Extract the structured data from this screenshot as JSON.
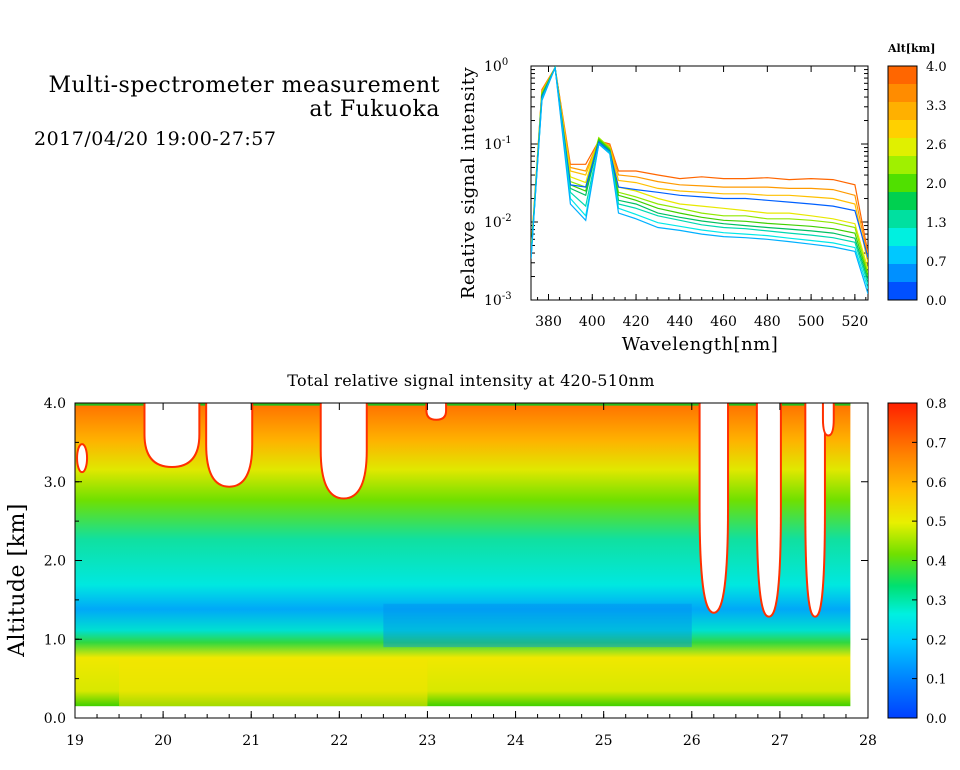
{
  "header": {
    "title_line1": "Multi-spectrometer measurement",
    "title_line2": "at Fukuoka",
    "datetime": "2017/04/20 19:00-27:57"
  },
  "chart_data": [
    {
      "type": "line",
      "title": "",
      "xlabel": "Wavelength[nm]",
      "ylabel": "Relative signal intensity",
      "xlim": [
        372,
        526
      ],
      "ylim": [
        0.001,
        1
      ],
      "yscale": "log",
      "x_ticks": [
        380,
        400,
        420,
        440,
        460,
        480,
        500,
        520
      ],
      "y_ticks": [
        0.001,
        0.01,
        0.1,
        1
      ],
      "y_tick_exponents": [
        "-3",
        "-2",
        "-1",
        "0"
      ],
      "y_tick_base": "10",
      "colorbar": {
        "title": "Alt[km]",
        "ticks": [
          "4.0",
          "3.3",
          "2.6",
          "2.0",
          "1.3",
          "0.7",
          "0.0"
        ],
        "colors": [
          "#ff6600",
          "#ff8c00",
          "#ffb000",
          "#ffd000",
          "#e0f000",
          "#a0f000",
          "#50e000",
          "#00d050",
          "#00e0a0",
          "#00f0e0",
          "#00c8ff",
          "#0090ff",
          "#0050ff"
        ]
      },
      "x": [
        372,
        377,
        383,
        390,
        397,
        403,
        408,
        412,
        420,
        430,
        440,
        450,
        460,
        470,
        480,
        490,
        500,
        510,
        520,
        526
      ],
      "series": [
        {
          "altitude": 4.0,
          "color": "#ff6600",
          "values": [
            0.004,
            0.5,
            0.95,
            0.055,
            0.055,
            0.11,
            0.1,
            0.045,
            0.045,
            0.04,
            0.036,
            0.038,
            0.036,
            0.036,
            0.037,
            0.035,
            0.036,
            0.035,
            0.03,
            0.004
          ]
        },
        {
          "altitude": 3.6,
          "color": "#ff9a00",
          "values": [
            0.004,
            0.48,
            0.95,
            0.05,
            0.045,
            0.11,
            0.095,
            0.04,
            0.038,
            0.033,
            0.03,
            0.029,
            0.028,
            0.028,
            0.028,
            0.027,
            0.027,
            0.026,
            0.022,
            0.0035
          ]
        },
        {
          "altitude": 3.3,
          "color": "#ffc000",
          "values": [
            0.004,
            0.46,
            0.95,
            0.045,
            0.04,
            0.11,
            0.09,
            0.034,
            0.032,
            0.027,
            0.025,
            0.024,
            0.023,
            0.023,
            0.022,
            0.022,
            0.021,
            0.02,
            0.017,
            0.003
          ]
        },
        {
          "altitude": 3.0,
          "color": "#e8e800",
          "values": [
            0.004,
            0.45,
            0.95,
            0.038,
            0.032,
            0.12,
            0.09,
            0.028,
            0.025,
            0.02,
            0.017,
            0.016,
            0.015,
            0.014,
            0.013,
            0.013,
            0.012,
            0.011,
            0.0095,
            0.0025
          ]
        },
        {
          "altitude": 2.6,
          "color": "#90e800",
          "values": [
            0.0038,
            0.45,
            0.95,
            0.033,
            0.028,
            0.12,
            0.088,
            0.024,
            0.021,
            0.017,
            0.015,
            0.013,
            0.012,
            0.012,
            0.011,
            0.011,
            0.0105,
            0.0098,
            0.0085,
            0.0022
          ]
        },
        {
          "altitude": 2.3,
          "color": "#40d000",
          "values": [
            0.0037,
            0.43,
            0.95,
            0.03,
            0.025,
            0.115,
            0.085,
            0.022,
            0.019,
            0.015,
            0.013,
            0.0115,
            0.0105,
            0.0102,
            0.0096,
            0.0092,
            0.0088,
            0.0082,
            0.0072,
            0.002
          ]
        },
        {
          "altitude": 2.0,
          "color": "#00c060",
          "values": [
            0.0036,
            0.42,
            0.95,
            0.027,
            0.022,
            0.11,
            0.082,
            0.019,
            0.017,
            0.013,
            0.0115,
            0.0103,
            0.0095,
            0.009,
            0.0085,
            0.0081,
            0.0077,
            0.0072,
            0.0062,
            0.0018
          ]
        },
        {
          "altitude": 1.7,
          "color": "#0060ff",
          "values": [
            0.0035,
            0.4,
            0.95,
            0.03,
            0.028,
            0.105,
            0.08,
            0.028,
            0.026,
            0.024,
            0.022,
            0.021,
            0.02,
            0.02,
            0.019,
            0.018,
            0.017,
            0.016,
            0.014,
            0.0035
          ]
        },
        {
          "altitude": 1.3,
          "color": "#00d8b0",
          "values": [
            0.0035,
            0.38,
            0.95,
            0.024,
            0.016,
            0.1,
            0.078,
            0.017,
            0.015,
            0.012,
            0.0105,
            0.0092,
            0.0085,
            0.0082,
            0.0077,
            0.0072,
            0.0068,
            0.0063,
            0.0055,
            0.0016
          ]
        },
        {
          "altitude": 1.0,
          "color": "#00e8e8",
          "values": [
            0.0034,
            0.37,
            0.95,
            0.02,
            0.012,
            0.1,
            0.075,
            0.015,
            0.0125,
            0.0098,
            0.0088,
            0.0079,
            0.0073,
            0.007,
            0.0067,
            0.0062,
            0.0058,
            0.0054,
            0.0047,
            0.0014
          ]
        },
        {
          "altitude": 0.7,
          "color": "#00b0ff",
          "values": [
            0.0034,
            0.36,
            0.95,
            0.017,
            0.0105,
            0.1,
            0.075,
            0.013,
            0.011,
            0.0085,
            0.0078,
            0.007,
            0.0065,
            0.0063,
            0.006,
            0.0056,
            0.0052,
            0.0048,
            0.0042,
            0.0012
          ]
        }
      ]
    },
    {
      "type": "heatmap",
      "title": "Total relative signal intensity at 420-510nm",
      "xlabel": "",
      "ylabel": "Altitude [km]",
      "xlim": [
        19,
        28
      ],
      "ylim": [
        0,
        4
      ],
      "x_ticks": [
        "19",
        "20",
        "21",
        "22",
        "23",
        "24",
        "25",
        "26",
        "27",
        "28"
      ],
      "y_ticks": [
        "0.0",
        "1.0",
        "2.0",
        "3.0",
        "4.0"
      ],
      "colorbar": {
        "ticks": [
          "0.8",
          "0.7",
          "0.6",
          "0.5",
          "0.4",
          "0.3",
          "0.2",
          "0.1",
          "0.0"
        ],
        "range": [
          0,
          0.8
        ]
      },
      "layers": [
        {
          "alt_range": [
            0.15,
            0.35
          ],
          "value": 0.35,
          "note_time_span": [
            19,
            27.8
          ]
        },
        {
          "alt_range": [
            0.35,
            0.85
          ],
          "value": 0.5
        },
        {
          "alt_range": [
            0.85,
            1.0
          ],
          "value": 0.3
        },
        {
          "alt_range": [
            1.0,
            1.6
          ],
          "value": 0.15
        },
        {
          "alt_range": [
            1.6,
            2.6
          ],
          "value": 0.25
        },
        {
          "alt_range": [
            2.6,
            3.2
          ],
          "value": 0.4
        },
        {
          "alt_range": [
            3.2,
            4.0
          ],
          "value": 0.6
        }
      ],
      "cloud_gaps": [
        {
          "time": [
            19.8,
            20.4
          ],
          "base_alt": 3.2
        },
        {
          "time": [
            20.5,
            21.0
          ],
          "base_alt": 2.95
        },
        {
          "time": [
            21.8,
            22.3
          ],
          "base_alt": 2.8
        },
        {
          "time": [
            23.0,
            23.2
          ],
          "base_alt": 3.8
        },
        {
          "time": [
            26.1,
            26.4
          ],
          "base_alt": 1.35
        },
        {
          "time": [
            26.75,
            27.0
          ],
          "base_alt": 1.3
        },
        {
          "time": [
            27.3,
            27.5
          ],
          "base_alt": 1.3
        },
        {
          "time": [
            27.5,
            27.6
          ],
          "base_alt": 3.6
        }
      ]
    }
  ]
}
